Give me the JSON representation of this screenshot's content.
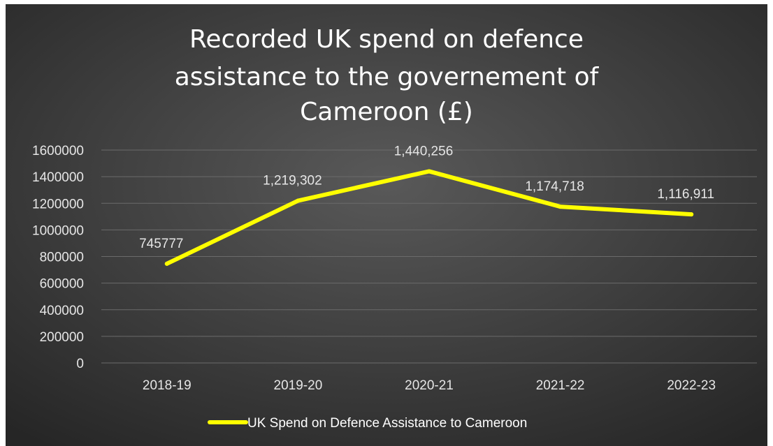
{
  "chart_data": {
    "type": "line",
    "title_lines": [
      "Recorded UK spend on defence",
      "assistance to the governement of",
      "Cameroon (£)"
    ],
    "categories": [
      "2018-19",
      "2019-20",
      "2020-21",
      "2021-22",
      "2022-23"
    ],
    "series": [
      {
        "name": "UK Spend on Defence Assistance to Cameroon",
        "values": [
          745777,
          1219302,
          1440256,
          1174718,
          1116911
        ],
        "data_labels": [
          "745777",
          "1,219,302",
          "1,440,256",
          "1,174,718",
          "1,116,911"
        ],
        "color": "#ffff00"
      }
    ],
    "y_ticks": [
      "0",
      "200000",
      "400000",
      "600000",
      "800000",
      "1000000",
      "1200000",
      "1400000",
      "1600000"
    ],
    "ylim": [
      0,
      1600000
    ],
    "y_step": 200000,
    "grid": true,
    "legend_position": "bottom",
    "background_color": "#303030",
    "outer_color": "#ffffff",
    "gridline_color": "#6b6b6b"
  }
}
